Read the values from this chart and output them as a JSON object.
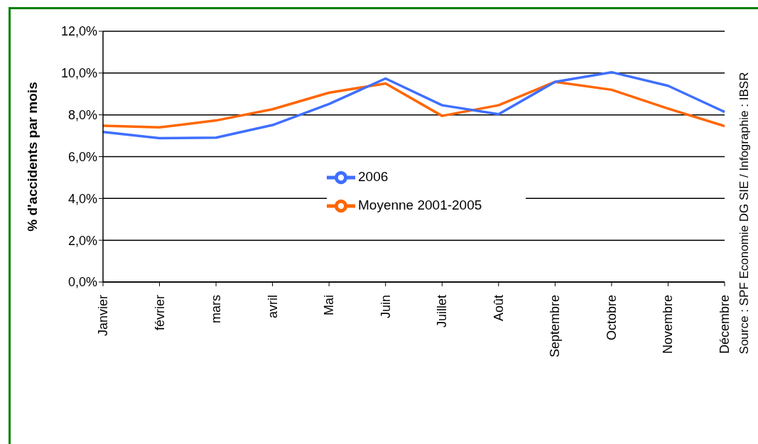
{
  "chart_data": {
    "type": "line",
    "ylabel": "% d'accidents par mois",
    "categories": [
      "Janvier",
      "février",
      "mars",
      "avril",
      "Mai",
      "Juin",
      "Juillet",
      "Août",
      "Septembre",
      "Octobre",
      "Novembre",
      "Décembre"
    ],
    "series": [
      {
        "name": "Moyenne 2001-2005",
        "color": "#ff6600",
        "values": [
          7.48,
          7.4,
          7.73,
          8.27,
          9.06,
          9.5,
          7.95,
          8.46,
          9.58,
          9.2,
          8.3,
          7.46
        ]
      },
      {
        "name": "2006",
        "color": "#3f6fff",
        "values": [
          7.18,
          6.88,
          6.91,
          7.51,
          8.52,
          9.74,
          8.46,
          8.03,
          9.58,
          10.04,
          9.39,
          8.14
        ]
      }
    ],
    "ylim": [
      0,
      12
    ],
    "yticks": [
      {
        "value": 0,
        "label": "0,0%"
      },
      {
        "value": 2,
        "label": "2,0%"
      },
      {
        "value": 4,
        "label": "4,0%"
      },
      {
        "value": 6,
        "label": "6,0%"
      },
      {
        "value": 8,
        "label": "8,0%"
      },
      {
        "value": 10,
        "label": "10,0%"
      },
      {
        "value": 12,
        "label": "12,0%"
      }
    ],
    "grid": "y",
    "legend": "center",
    "marker": "none",
    "line_style": "solid",
    "annotations": [
      "Source : SPF Economie DG SIE / Infographie : IBSR"
    ]
  }
}
